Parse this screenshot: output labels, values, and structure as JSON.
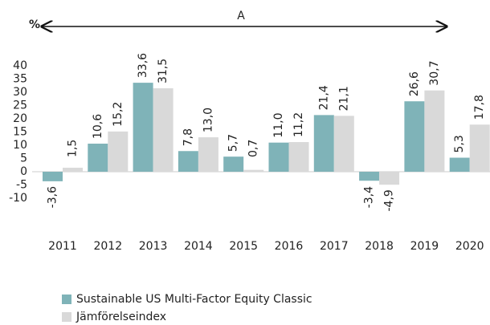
{
  "chart_data": {
    "type": "bar",
    "y_label": "%",
    "annotation": "A",
    "categories": [
      "2011",
      "2012",
      "2013",
      "2014",
      "2015",
      "2016",
      "2017",
      "2018",
      "2019",
      "2020"
    ],
    "series": [
      {
        "name": "Sustainable US Multi-Factor Equity Classic",
        "color": "#7fb3b8",
        "values": [
          -3.6,
          10.6,
          33.6,
          7.8,
          5.7,
          11.0,
          21.4,
          -3.4,
          26.6,
          5.3
        ],
        "value_labels": [
          "-3,6",
          "10,6",
          "33,6",
          "7,8",
          "5,7",
          "11,0",
          "21,4",
          "-3,4",
          "26,6",
          "5,3"
        ]
      },
      {
        "name": "Jämförelseindex",
        "color": "#d9d9d9",
        "values": [
          1.5,
          15.2,
          31.5,
          13.0,
          0.7,
          11.2,
          21.1,
          -4.9,
          30.7,
          17.8
        ],
        "value_labels": [
          "1,5",
          "15,2",
          "31,5",
          "13,0",
          "0,7",
          "11,2",
          "21,1",
          "-4,9",
          "30,7",
          "17,8"
        ]
      }
    ],
    "ylim": [
      -10,
      40
    ],
    "yticks": [
      -10,
      -5,
      0,
      5,
      10,
      15,
      20,
      25,
      30,
      35,
      40
    ],
    "legend": "bottom-left"
  }
}
